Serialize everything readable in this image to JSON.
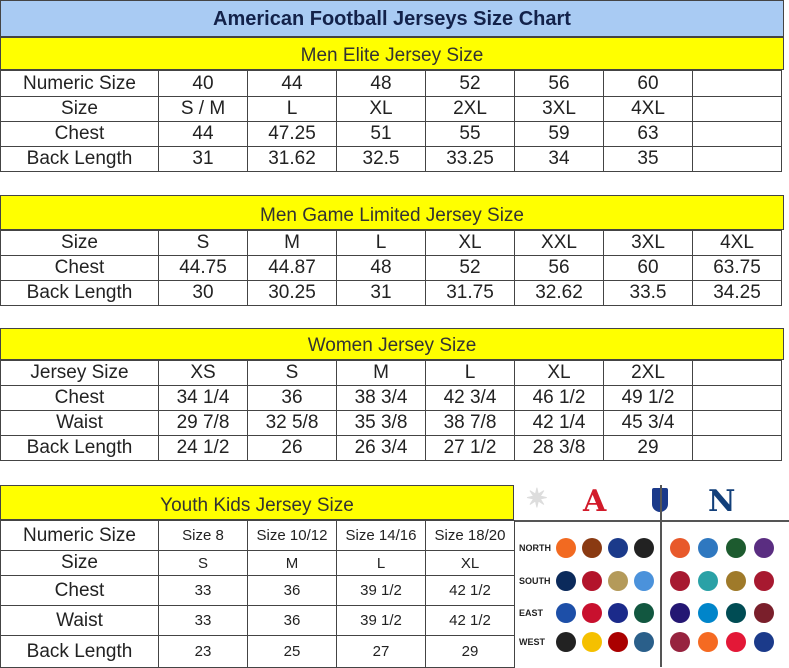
{
  "title": "American Football Jerseys Size Chart",
  "colors": {
    "title_bg": "#a9cbf3",
    "section_bg": "#ffff00",
    "title_text": "#13224a"
  },
  "men_elite": {
    "heading": "Men Elite Jersey Size",
    "rows": [
      [
        "Numeric Size",
        "40",
        "44",
        "48",
        "52",
        "56",
        "60",
        ""
      ],
      [
        "Size",
        "S / M",
        "L",
        "XL",
        "2XL",
        "3XL",
        "4XL",
        ""
      ],
      [
        "Chest",
        "44",
        "47.25",
        "51",
        "55",
        "59",
        "63",
        ""
      ],
      [
        "Back Length",
        "31",
        "31.62",
        "32.5",
        "33.25",
        "34",
        "35",
        ""
      ]
    ]
  },
  "men_game": {
    "heading": "Men Game Limited Jersey Size",
    "rows": [
      [
        "Size",
        "S",
        "M",
        "L",
        "XL",
        "XXL",
        "3XL",
        "4XL"
      ],
      [
        "Chest",
        "44.75",
        "44.87",
        "48",
        "52",
        "56",
        "60",
        "63.75"
      ],
      [
        "Back Length",
        "30",
        "30.25",
        "31",
        "31.75",
        "32.62",
        "33.5",
        "34.25"
      ]
    ]
  },
  "women": {
    "heading": "Women Jersey Size",
    "rows": [
      [
        "Jersey Size",
        "XS",
        "S",
        "M",
        "L",
        "XL",
        "2XL",
        ""
      ],
      [
        "Chest",
        "34 1/4",
        "36",
        "38 3/4",
        "42 3/4",
        "46 1/2",
        "49 1/2",
        ""
      ],
      [
        "Waist",
        "29 7/8",
        "32 5/8",
        "35 3/8",
        "38 7/8",
        "42 1/4",
        "45 3/4",
        ""
      ],
      [
        "Back Length",
        "24 1/2",
        "26",
        "26 3/4",
        "27 1/2",
        "28 3/8",
        "29",
        ""
      ]
    ]
  },
  "youth": {
    "heading": "Youth Kids Jersey Size",
    "rows": [
      [
        "Numeric Size",
        "Size 8",
        "Size 10/12",
        "Size 14/16",
        "Size 18/20"
      ],
      [
        "Size",
        "S",
        "M",
        "L",
        "XL"
      ],
      [
        "Chest",
        "33",
        "36",
        "39 1/2",
        "42 1/2"
      ],
      [
        "Waist",
        "33",
        "36",
        "39 1/2",
        "42 1/2"
      ],
      [
        "Back Length",
        "23",
        "25",
        "27",
        "29"
      ]
    ]
  },
  "nfl": {
    "afc": "A",
    "nfc": "N",
    "divisions": [
      "NORTH",
      "SOUTH",
      "EAST",
      "WEST"
    ],
    "logo_colors": [
      [
        "#f26a21",
        "#8a3a12",
        "#1b3a8a",
        "#222",
        "#e8592b",
        "#2f78c0",
        "#1d5b2f",
        "#5a2d81"
      ],
      [
        "#0b2a5b",
        "#b3142b",
        "#b49a5a",
        "#4b92db",
        "#a71930",
        "#2aa1a6",
        "#9f7a2a",
        "#a71930"
      ],
      [
        "#1d4fa8",
        "#c8102e",
        "#1b2a8a",
        "#125740",
        "#241773",
        "#0085ca",
        "#004c54",
        "#7a1f2b"
      ],
      [
        "#222",
        "#f5c000",
        "#aa0000",
        "#2a5f8a",
        "#97233f",
        "#f56a22",
        "#e31837",
        "#1b3a8a"
      ]
    ]
  }
}
